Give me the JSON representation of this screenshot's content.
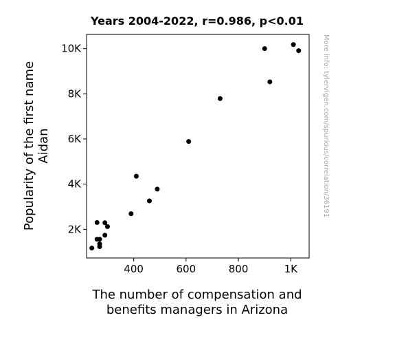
{
  "watermark": "More info: tylervigen.com/spurious/correlation/36191",
  "chart_data": {
    "type": "scatter",
    "title": "Years 2004-2022, r=0.986, p<0.01",
    "xlabel_lines": [
      "The number of compensation and",
      "benefits managers in Arizona"
    ],
    "ylabel_lines": [
      "Popularity of the first name",
      "Aidan"
    ],
    "xlim": [
      220,
      1070
    ],
    "ylim": [
      730,
      10630
    ],
    "xticks": [
      {
        "value": 400,
        "label": "400"
      },
      {
        "value": 600,
        "label": "600"
      },
      {
        "value": 800,
        "label": "800"
      },
      {
        "value": 1000,
        "label": "1K"
      }
    ],
    "yticks": [
      {
        "value": 2000,
        "label": "2K"
      },
      {
        "value": 4000,
        "label": "4K"
      },
      {
        "value": 6000,
        "label": "6K"
      },
      {
        "value": 8000,
        "label": "8K"
      },
      {
        "value": 10000,
        "label": "10K"
      }
    ],
    "grid": false,
    "marker_color": "#000000",
    "points": [
      {
        "x": 240,
        "y": 1170
      },
      {
        "x": 260,
        "y": 1560
      },
      {
        "x": 260,
        "y": 2300
      },
      {
        "x": 270,
        "y": 1230
      },
      {
        "x": 270,
        "y": 1350
      },
      {
        "x": 270,
        "y": 1560
      },
      {
        "x": 290,
        "y": 1740
      },
      {
        "x": 290,
        "y": 2290
      },
      {
        "x": 300,
        "y": 2120
      },
      {
        "x": 390,
        "y": 2690
      },
      {
        "x": 410,
        "y": 4350
      },
      {
        "x": 460,
        "y": 3260
      },
      {
        "x": 490,
        "y": 3780
      },
      {
        "x": 610,
        "y": 5890
      },
      {
        "x": 730,
        "y": 7790
      },
      {
        "x": 900,
        "y": 10000
      },
      {
        "x": 920,
        "y": 8530
      },
      {
        "x": 1010,
        "y": 10180
      },
      {
        "x": 1030,
        "y": 9910
      }
    ]
  }
}
